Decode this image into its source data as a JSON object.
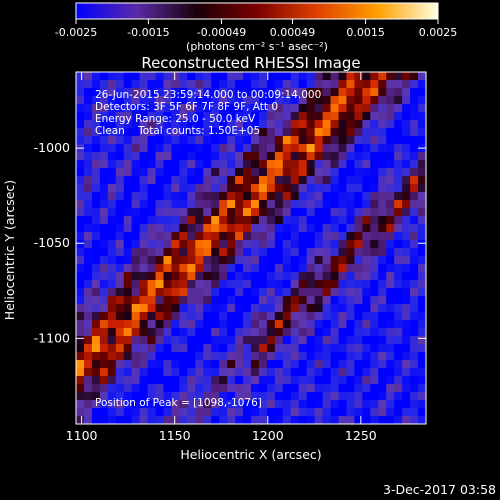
{
  "colorbar": {
    "ticks": [
      "-0.0025",
      "-0.0015",
      "-0.00049",
      "0.00049",
      "0.0015",
      "0.0025"
    ],
    "tick_values": [
      -0.0025,
      -0.0015,
      -0.00049,
      0.00049,
      0.0015,
      0.0025
    ],
    "units_label": "(photons cm⁻² s⁻¹ asec⁻²)",
    "colors": [
      "#0000ff",
      "#5a2aa8",
      "#1a0008",
      "#7a0000",
      "#e04000",
      "#ffa000",
      "#ffffe0"
    ]
  },
  "chart_data": {
    "type": "heatmap",
    "title": "Reconstructed RHESSI Image",
    "xlabel": "Heliocentric X (arcsec)",
    "ylabel": "Heliocentric Y (arcsec)",
    "xlim": [
      1097,
      1285
    ],
    "ylim": [
      -1145,
      -960
    ],
    "x_ticks": [
      1100,
      1150,
      1200,
      1250
    ],
    "x_tick_labels": [
      "1100",
      "1150",
      "1200",
      "1250"
    ],
    "y_ticks": [
      -1000,
      -1050,
      -1100
    ],
    "y_tick_labels": [
      "-1000",
      "-1050",
      "-1100"
    ],
    "zlim": [
      -0.0025,
      0.0025
    ],
    "annotations": [
      "26-Jun-2015 23:59:14.000 to 00:09:14.000",
      "Detectors: 3F 5F 6F 7F 8F 9F, Att 0",
      "Energy Range: 25.0 - 50.0 keV",
      "Clean    Total counts: 1.50E+05"
    ],
    "peak_label": "Position of Peak = [1098,-1076]"
  },
  "footer": {
    "timestamp": "3-Dec-2017 03:58"
  }
}
